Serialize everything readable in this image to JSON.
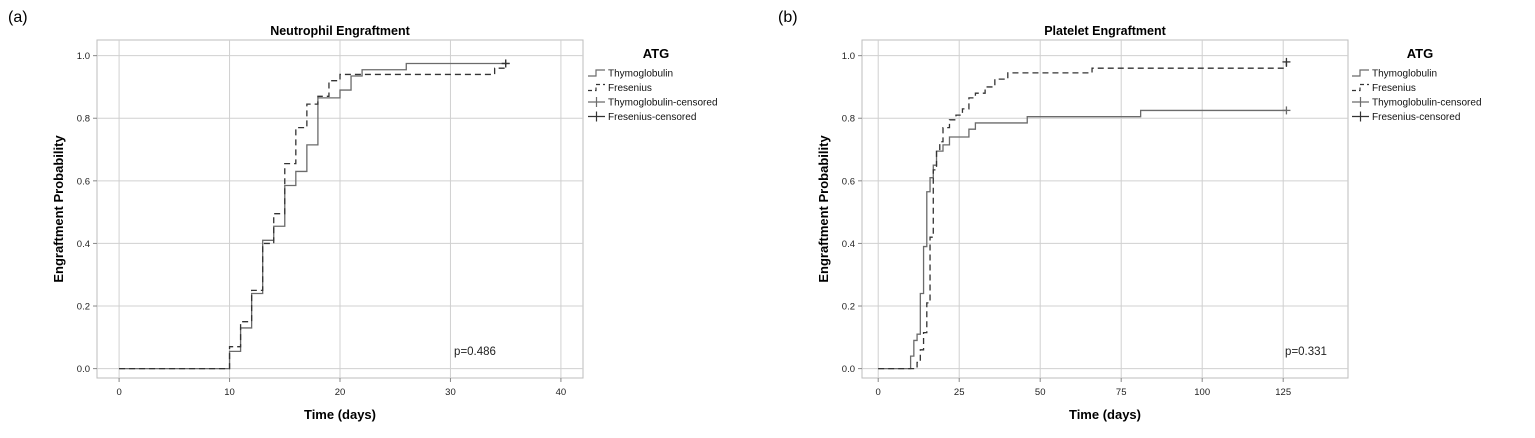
{
  "chart_data": [
    {
      "panel_label": "(a)",
      "type": "line",
      "step": true,
      "title": "Neutrophil Engraftment",
      "xlabel": "Time (days)",
      "ylabel": "Engraftment Probability",
      "xlim": [
        -2,
        42
      ],
      "ylim": [
        -0.03,
        1.05
      ],
      "xticks": [
        0,
        10,
        20,
        30,
        40
      ],
      "xtick_labels": [
        "0",
        "10",
        "20",
        "30",
        "40"
      ],
      "yticks": [
        0,
        0.2,
        0.4,
        0.6,
        0.8,
        1.0
      ],
      "ytick_labels": [
        "0.0",
        "0.2",
        "0.4",
        "0.6",
        "0.8",
        "1.0"
      ],
      "grid": true,
      "legend_title": "ATG",
      "legend_position": "right",
      "legend": [
        "Thymoglobulin",
        "Fresenius",
        "Thymoglobulin-censored",
        "Fresenius-censored"
      ],
      "annotation": "p=0.486",
      "series": [
        {
          "name": "Thymoglobulin",
          "style": "solid",
          "color": "#6b6b6b",
          "x": [
            0,
            10,
            11,
            12,
            13,
            14,
            15,
            16,
            17,
            18,
            20,
            21,
            22,
            26,
            35
          ],
          "y": [
            0,
            0.055,
            0.13,
            0.24,
            0.41,
            0.455,
            0.585,
            0.63,
            0.715,
            0.865,
            0.89,
            0.935,
            0.955,
            0.975,
            0.975
          ],
          "censored_x": [
            35
          ],
          "censored_y": [
            0.975
          ]
        },
        {
          "name": "Fresenius",
          "style": "dashed",
          "color": "#333333",
          "x": [
            0,
            10,
            11,
            12,
            13,
            14,
            15,
            16,
            17,
            18,
            19,
            20,
            21,
            34,
            35
          ],
          "y": [
            0,
            0.07,
            0.15,
            0.25,
            0.4,
            0.495,
            0.655,
            0.77,
            0.845,
            0.87,
            0.92,
            0.94,
            0.94,
            0.96,
            0.975
          ],
          "censored_x": [
            35
          ],
          "censored_y": [
            0.975
          ]
        }
      ]
    },
    {
      "panel_label": "(b)",
      "type": "line",
      "step": true,
      "title": "Platelet Engraftment",
      "xlabel": "Time (days)",
      "ylabel": "Engraftment Probability",
      "xlim": [
        -5,
        145
      ],
      "ylim": [
        -0.03,
        1.05
      ],
      "xticks": [
        0,
        25,
        50,
        75,
        100,
        125
      ],
      "xtick_labels": [
        "0",
        "25",
        "50",
        "75",
        "100",
        "125"
      ],
      "yticks": [
        0,
        0.2,
        0.4,
        0.6,
        0.8,
        1.0
      ],
      "ytick_labels": [
        "0.0",
        "0.2",
        "0.4",
        "0.6",
        "0.8",
        "1.0"
      ],
      "grid": true,
      "legend_title": "ATG",
      "legend_position": "right",
      "legend": [
        "Thymoglobulin",
        "Fresenius",
        "Thymoglobulin-censored",
        "Fresenius-censored"
      ],
      "annotation": "p=0.331",
      "series": [
        {
          "name": "Thymoglobulin",
          "style": "solid",
          "color": "#6b6b6b",
          "x": [
            0,
            10,
            11,
            12,
            13,
            14,
            15,
            16,
            17,
            18,
            20,
            22,
            25,
            28,
            30,
            46,
            81,
            126
          ],
          "y": [
            0,
            0.04,
            0.09,
            0.11,
            0.24,
            0.39,
            0.565,
            0.61,
            0.65,
            0.695,
            0.715,
            0.74,
            0.74,
            0.765,
            0.785,
            0.805,
            0.825,
            0.825
          ],
          "censored_x": [
            126
          ],
          "censored_y": [
            0.825
          ]
        },
        {
          "name": "Fresenius",
          "style": "dashed",
          "color": "#333333",
          "x": [
            0,
            12,
            13,
            14,
            15,
            16,
            17,
            18,
            19,
            20,
            22,
            24,
            26,
            28,
            30,
            33,
            36,
            40,
            66,
            126
          ],
          "y": [
            0,
            0.02,
            0.06,
            0.115,
            0.21,
            0.42,
            0.635,
            0.7,
            0.725,
            0.77,
            0.795,
            0.81,
            0.83,
            0.865,
            0.88,
            0.9,
            0.925,
            0.945,
            0.96,
            0.98
          ],
          "censored_x": [
            126
          ],
          "censored_y": [
            0.98
          ]
        }
      ]
    }
  ]
}
